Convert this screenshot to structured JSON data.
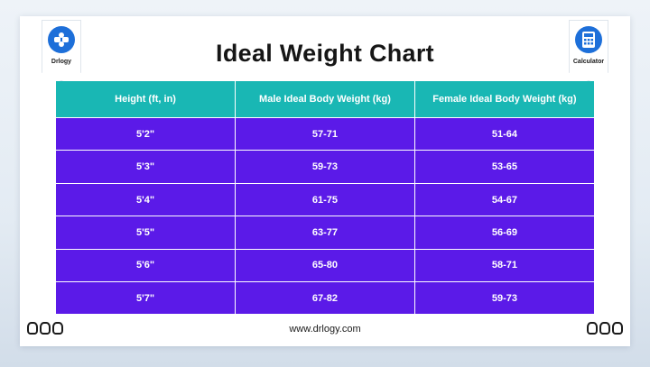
{
  "logos": {
    "left_label": "Drlogy",
    "right_label": "Calculator",
    "left_icon": "drlogy-logo-icon",
    "right_icon": "calculator-icon"
  },
  "title": "Ideal Weight Chart",
  "table": {
    "headers": [
      "Height (ft, in)",
      "Male Ideal Body Weight (kg)",
      "Female Ideal Body Weight (kg)"
    ],
    "rows": [
      [
        "5'2\"",
        "57-71",
        "51-64"
      ],
      [
        "5'3\"",
        "59-73",
        "53-65"
      ],
      [
        "5'4\"",
        "61-75",
        "54-67"
      ],
      [
        "5'5\"",
        "63-77",
        "56-69"
      ],
      [
        "5'6\"",
        "65-80",
        "58-71"
      ],
      [
        "5'7\"",
        "67-82",
        "59-73"
      ]
    ]
  },
  "footer": "www.drlogy.com",
  "colors": {
    "header_bg": "#19b7b4",
    "row_bg": "#5b1ae8",
    "brand_blue": "#1d6fd9"
  }
}
